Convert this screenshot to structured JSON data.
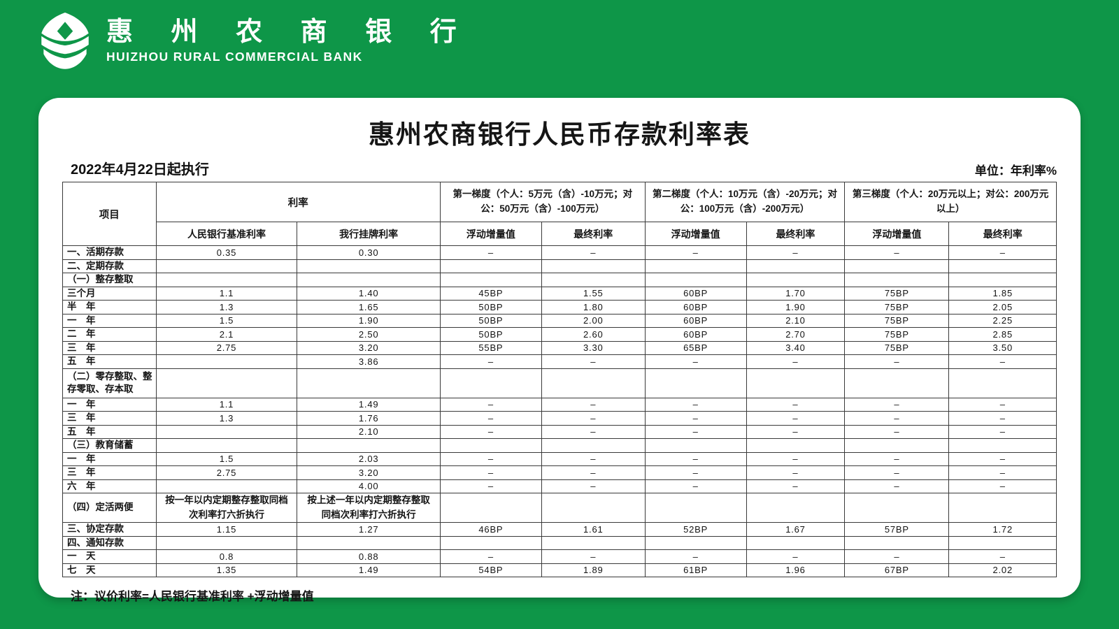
{
  "brand": {
    "name_cn": "惠 州 农 商 银 行",
    "name_en": "HUIZHOU RURAL COMMERCIAL BANK",
    "logo_icon": "leaf-cube-logo",
    "brand_green": "#0E9648"
  },
  "card": {
    "title": "惠州农商银行人民币存款利率表",
    "effective_date": "2022年4月22日起执行",
    "unit_label": "单位：年利率%",
    "note": "注：议价利率=人民银行基准利率 +浮动增量值"
  },
  "table": {
    "header": {
      "item": "项目",
      "rate_group": "利率",
      "rate_cols": [
        "人民银行基准利率",
        "我行挂牌利率"
      ],
      "tier1": "第一梯度（个人：5万元（含）-10万元；对公：50万元（含）-100万元）",
      "tier2": "第二梯度（个人：10万元（含）-20万元；对公：100万元（含）-200万元）",
      "tier3": "第三梯度（个人：20万元以上；对公：200万元以上）",
      "tier_subs": [
        "浮动增量值",
        "最终利率",
        "浮动增量值",
        "最终利率",
        "浮动增量值",
        "最终利率"
      ]
    },
    "rows": [
      {
        "label": "一、活期存款",
        "cells": [
          "0.35",
          "0.30",
          "–",
          "–",
          "–",
          "–",
          "–",
          "–"
        ]
      },
      {
        "label": "二、定期存款",
        "cells": [
          "",
          "",
          "",
          "",
          "",
          "",
          "",
          ""
        ]
      },
      {
        "label": "（一）整存整取",
        "cells": [
          "",
          "",
          "",
          "",
          "",
          "",
          "",
          ""
        ]
      },
      {
        "label": "三个月",
        "cells": [
          "1.1",
          "1.40",
          "45BP",
          "1.55",
          "60BP",
          "1.70",
          "75BP",
          "1.85"
        ]
      },
      {
        "label": "半　年",
        "cells": [
          "1.3",
          "1.65",
          "50BP",
          "1.80",
          "60BP",
          "1.90",
          "75BP",
          "2.05"
        ]
      },
      {
        "label": "一　年",
        "cells": [
          "1.5",
          "1.90",
          "50BP",
          "2.00",
          "60BP",
          "2.10",
          "75BP",
          "2.25"
        ]
      },
      {
        "label": "二　年",
        "cells": [
          "2.1",
          "2.50",
          "50BP",
          "2.60",
          "60BP",
          "2.70",
          "75BP",
          "2.85"
        ]
      },
      {
        "label": "三　年",
        "cells": [
          "2.75",
          "3.20",
          "55BP",
          "3.30",
          "65BP",
          "3.40",
          "75BP",
          "3.50"
        ]
      },
      {
        "label": "五　年",
        "cells": [
          "",
          "3.86",
          "–",
          "–",
          "–",
          "–",
          "–",
          "–"
        ]
      },
      {
        "label": "（二）零存整取、整存零取、存本取",
        "tall": true,
        "cells": [
          "",
          "",
          "",
          "",
          "",
          "",
          "",
          ""
        ]
      },
      {
        "label": "一　年",
        "cells": [
          "1.1",
          "1.49",
          "–",
          "–",
          "–",
          "–",
          "–",
          "–"
        ]
      },
      {
        "label": "三　年",
        "cells": [
          "1.3",
          "1.76",
          "–",
          "–",
          "–",
          "–",
          "–",
          "–"
        ]
      },
      {
        "label": "五　年",
        "cells": [
          "",
          "2.10",
          "–",
          "–",
          "–",
          "–",
          "–",
          "–"
        ]
      },
      {
        "label": "（三）教育储蓄",
        "cells": [
          "",
          "",
          "",
          "",
          "",
          "",
          "",
          ""
        ]
      },
      {
        "label": "一　年",
        "cells": [
          "1.5",
          "2.03",
          "–",
          "–",
          "–",
          "–",
          "–",
          "–"
        ]
      },
      {
        "label": "三　年",
        "cells": [
          "2.75",
          "3.20",
          "–",
          "–",
          "–",
          "–",
          "–",
          "–"
        ]
      },
      {
        "label": "六　年",
        "cells": [
          "",
          "4.00",
          "–",
          "–",
          "–",
          "–",
          "–",
          "–"
        ]
      },
      {
        "label": "（四）定活两便",
        "tall": true,
        "cells": [
          "按一年以内定期整存整取同档次利率打六折执行",
          "按上述一年以内定期整存整取同档次利率打六折执行",
          "",
          "",
          "",
          "",
          "",
          ""
        ]
      },
      {
        "label": "三、协定存款",
        "cells": [
          "1.15",
          "1.27",
          "46BP",
          "1.61",
          "52BP",
          "1.67",
          "57BP",
          "1.72"
        ]
      },
      {
        "label": "四、通知存款",
        "cells": [
          "",
          "",
          "",
          "",
          "",
          "",
          "",
          ""
        ]
      },
      {
        "label": "一　天",
        "cells": [
          "0.8",
          "0.88",
          "–",
          "–",
          "–",
          "–",
          "–",
          "–"
        ]
      },
      {
        "label": "七　天",
        "cells": [
          "1.35",
          "1.49",
          "54BP",
          "1.89",
          "61BP",
          "1.96",
          "67BP",
          "2.02"
        ]
      }
    ]
  }
}
